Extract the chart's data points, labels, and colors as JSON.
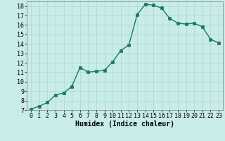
{
  "x": [
    0,
    1,
    2,
    3,
    4,
    5,
    6,
    7,
    8,
    9,
    10,
    11,
    12,
    13,
    14,
    15,
    16,
    17,
    18,
    19,
    20,
    21,
    22,
    23
  ],
  "y": [
    7.1,
    7.4,
    7.8,
    8.6,
    8.8,
    9.5,
    11.5,
    11.0,
    11.1,
    11.2,
    12.1,
    13.3,
    13.9,
    17.1,
    18.2,
    18.1,
    17.8,
    16.7,
    16.2,
    16.1,
    16.2,
    15.8,
    14.5,
    14.1
  ],
  "line_color": "#1a7a5e",
  "marker_color": "#1a7a5e",
  "bg_color": "#c8ece8",
  "grid_color": "#b0d4d0",
  "xlabel": "Humidex (Indice chaleur)",
  "xlabel_fontsize": 7,
  "xlim": [
    -0.5,
    23.5
  ],
  "ylim": [
    7,
    18.5
  ],
  "yticks": [
    7,
    8,
    9,
    10,
    11,
    12,
    13,
    14,
    15,
    16,
    17,
    18
  ],
  "xticks": [
    0,
    1,
    2,
    3,
    4,
    5,
    6,
    7,
    8,
    9,
    10,
    11,
    12,
    13,
    14,
    15,
    16,
    17,
    18,
    19,
    20,
    21,
    22,
    23
  ],
  "tick_fontsize": 6,
  "line_width": 1.0,
  "marker_size": 2.5
}
